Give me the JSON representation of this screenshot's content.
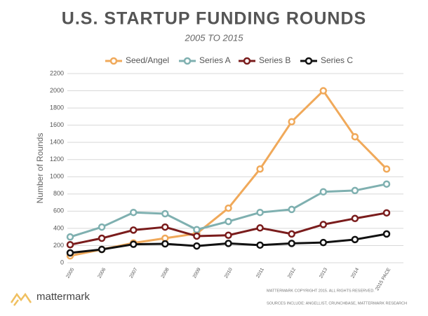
{
  "chart_data": {
    "type": "line",
    "title": "U.S. STARTUP FUNDING ROUNDS",
    "subtitle": "2005 TO 2015",
    "y_label": "Number of Rounds",
    "categories": [
      "2005",
      "2006",
      "2007",
      "2008",
      "2009",
      "2010",
      "2011",
      "2012",
      "2013",
      "2014",
      "2015 PACE"
    ],
    "series": [
      {
        "name": "Seed/Angel",
        "color": "#f0a95a",
        "values": [
          80,
          155,
          230,
          285,
          340,
          635,
          1090,
          1640,
          2000,
          1465,
          1090
        ]
      },
      {
        "name": "Series A",
        "color": "#7fb0b0",
        "values": [
          300,
          415,
          585,
          570,
          385,
          480,
          585,
          620,
          825,
          840,
          915
        ]
      },
      {
        "name": "Series B",
        "color": "#7a1c1c",
        "values": [
          210,
          285,
          380,
          415,
          310,
          320,
          405,
          335,
          445,
          515,
          580
        ]
      },
      {
        "name": "Series C",
        "color": "#111111",
        "values": [
          115,
          155,
          215,
          220,
          195,
          225,
          205,
          225,
          235,
          270,
          335
        ]
      }
    ],
    "ylim": [
      0,
      2200
    ],
    "yticks": [
      0,
      200,
      400,
      600,
      800,
      1000,
      1200,
      1400,
      1600,
      1800,
      2000,
      2200
    ],
    "grid": true,
    "legend": "top",
    "brand": "mattermark",
    "copyright": "MATTERMARK COPYRIGHT 2015. ALL RIGHTS RESERVED.",
    "sources": "SOURCES INCLUDE: ANGELLIST, CRUNCHBASE, MATTERMARK RESEARCH"
  }
}
